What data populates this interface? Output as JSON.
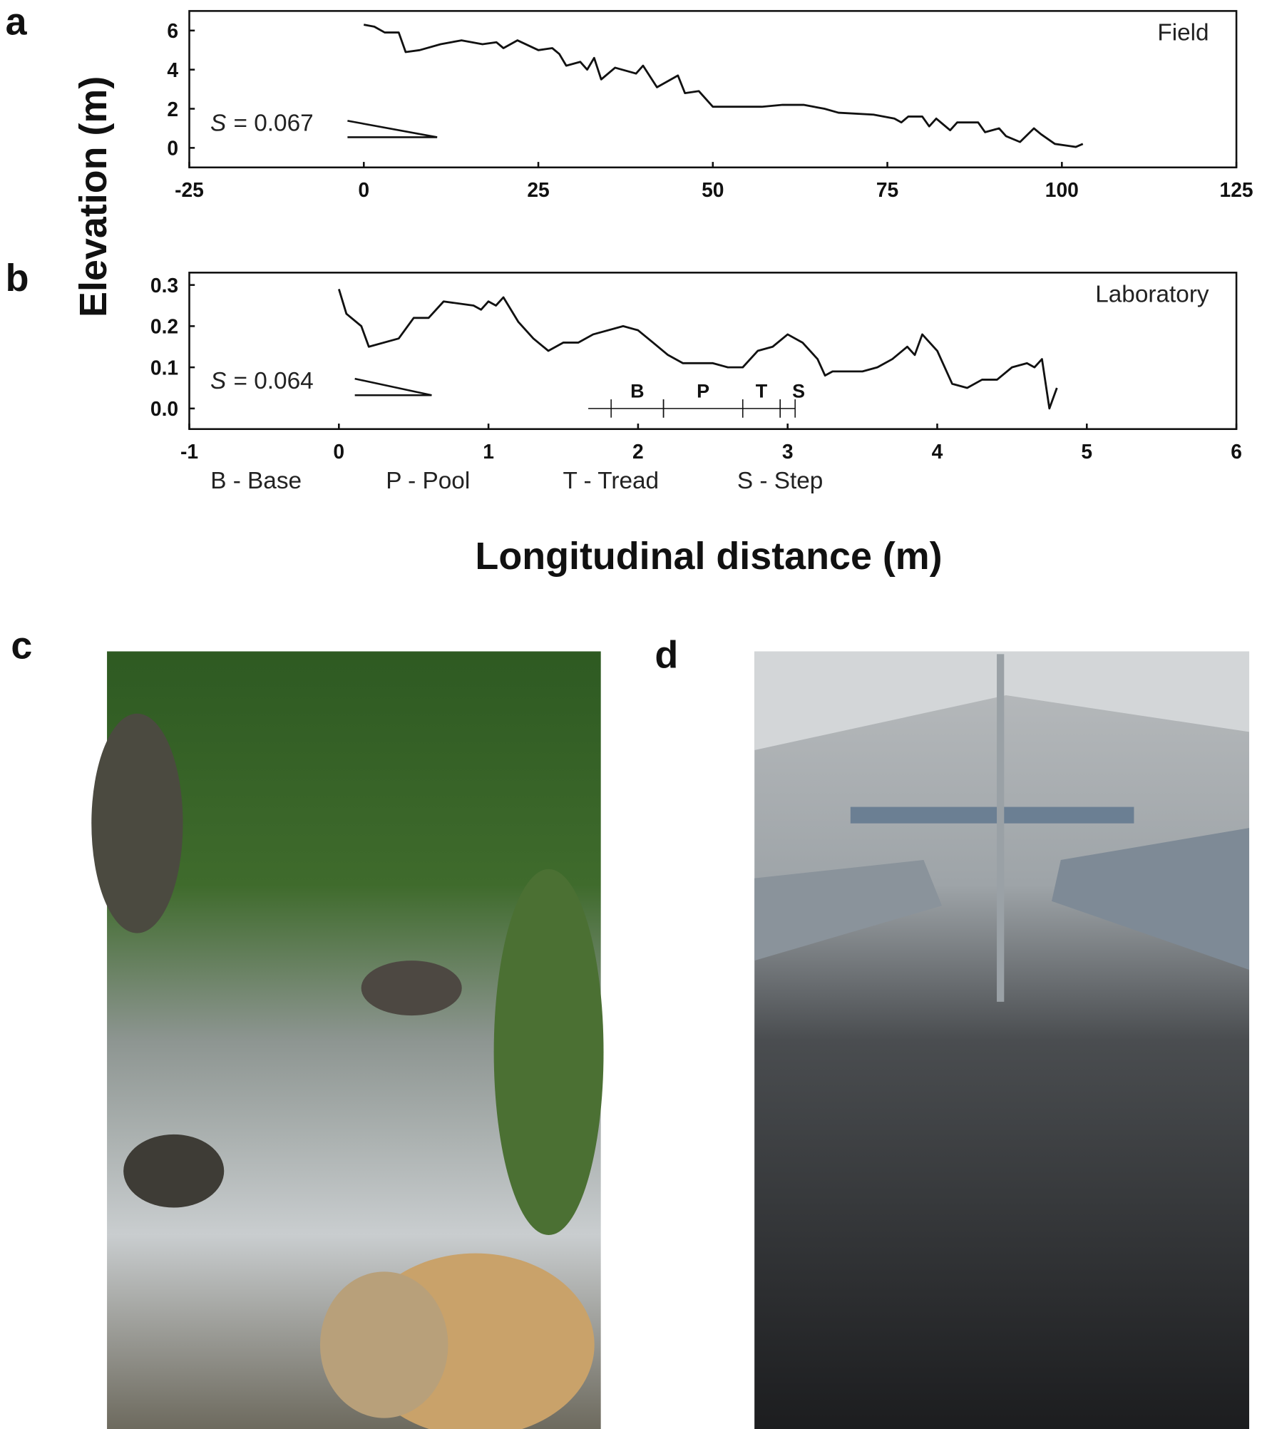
{
  "figure": {
    "ylabel": "Elevation (m)",
    "xlabel": "Longitudinal distance (m)",
    "panels": [
      "a",
      "b",
      "c",
      "d"
    ]
  },
  "chart_data": [
    {
      "type": "line",
      "annotation": "Field",
      "slope_symbol": "S",
      "slope_text": "= 0.067",
      "color": "#111111",
      "x": [
        0,
        1.5,
        3,
        5,
        6,
        8,
        11,
        14,
        17,
        19,
        20,
        22,
        25,
        27,
        28,
        29,
        31,
        32,
        33,
        34,
        36,
        39,
        40,
        42,
        44,
        45,
        46,
        48,
        50,
        53,
        57,
        60,
        63,
        66,
        68,
        73,
        76,
        77,
        78,
        80,
        81,
        82,
        83,
        84,
        85,
        88,
        89,
        91,
        92,
        94,
        96,
        97,
        99,
        101,
        102,
        103
      ],
      "values": [
        6.3,
        6.2,
        5.9,
        5.9,
        4.9,
        5.0,
        5.3,
        5.5,
        5.3,
        5.4,
        5.1,
        5.5,
        5.0,
        5.1,
        4.8,
        4.2,
        4.4,
        4.0,
        4.6,
        3.5,
        4.1,
        3.8,
        4.2,
        3.1,
        3.5,
        3.7,
        2.8,
        2.9,
        2.1,
        2.1,
        2.1,
        2.2,
        2.2,
        2.0,
        1.8,
        1.7,
        1.5,
        1.3,
        1.6,
        1.6,
        1.1,
        1.5,
        1.2,
        0.9,
        1.3,
        1.3,
        0.8,
        1.0,
        0.6,
        0.3,
        1.0,
        0.7,
        0.2,
        0.1,
        0.05,
        0.2
      ],
      "xlim": [
        -25,
        125
      ],
      "ylim": [
        -1,
        7
      ],
      "xticks": [
        -25,
        0,
        25,
        50,
        75,
        100,
        125
      ],
      "yticks": [
        0,
        2,
        4,
        6
      ]
    },
    {
      "type": "line",
      "annotation": "Laboratory",
      "slope_symbol": "S",
      "slope_text": "= 0.064",
      "color": "#111111",
      "x": [
        0,
        0.05,
        0.15,
        0.2,
        0.4,
        0.5,
        0.6,
        0.7,
        0.9,
        0.95,
        1.0,
        1.05,
        1.1,
        1.2,
        1.3,
        1.4,
        1.5,
        1.6,
        1.7,
        1.9,
        2.0,
        2.1,
        2.2,
        2.3,
        2.5,
        2.6,
        2.7,
        2.8,
        2.9,
        3.0,
        3.1,
        3.2,
        3.25,
        3.3,
        3.5,
        3.6,
        3.7,
        3.8,
        3.85,
        3.9,
        4.0,
        4.1,
        4.2,
        4.3,
        4.4,
        4.5,
        4.6,
        4.65,
        4.7,
        4.75,
        4.8
      ],
      "values": [
        0.29,
        0.23,
        0.2,
        0.15,
        0.17,
        0.22,
        0.22,
        0.26,
        0.25,
        0.24,
        0.26,
        0.25,
        0.27,
        0.21,
        0.17,
        0.14,
        0.16,
        0.16,
        0.18,
        0.2,
        0.19,
        0.16,
        0.13,
        0.11,
        0.11,
        0.1,
        0.1,
        0.14,
        0.15,
        0.18,
        0.16,
        0.12,
        0.08,
        0.09,
        0.09,
        0.1,
        0.12,
        0.15,
        0.13,
        0.18,
        0.14,
        0.06,
        0.05,
        0.07,
        0.07,
        0.1,
        0.11,
        0.1,
        0.12,
        0.0,
        0.05
      ],
      "xlim": [
        -1,
        6
      ],
      "ylim": [
        -0.05,
        0.33
      ],
      "xticks": [
        -1,
        0,
        1,
        2,
        3,
        4,
        5,
        6
      ],
      "yticks": [
        {
          "value": 0,
          "label": "0.0"
        },
        0.1,
        0.2,
        0.3
      ],
      "segments": [
        {
          "label": "B",
          "x": [
            1.82,
            2.17
          ]
        },
        {
          "label": "P",
          "x": [
            2.17,
            2.7
          ]
        },
        {
          "label": "T",
          "x": [
            2.7,
            2.95
          ]
        },
        {
          "label": "S",
          "x": [
            2.95,
            3.05
          ]
        }
      ],
      "key": [
        "B - Base",
        "P - Pool",
        "T - Tread",
        "S - Step"
      ]
    }
  ]
}
